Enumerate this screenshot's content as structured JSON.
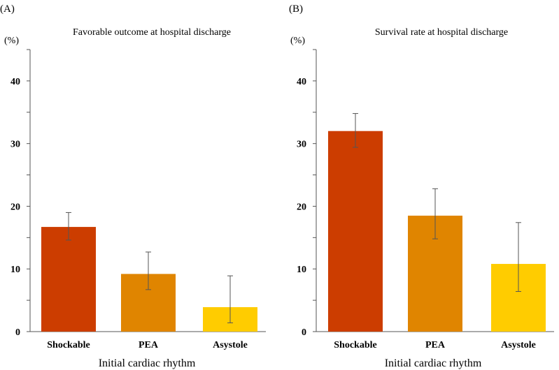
{
  "chart_data": [
    {
      "type": "bar",
      "panel": "(A)",
      "title": "Favorable outcome at hospital discharge",
      "ylabel": "(%)",
      "xlabel": "Initial cardiac rhythm",
      "ylim": [
        0,
        45
      ],
      "yticks": [
        0,
        10,
        20,
        30,
        40
      ],
      "categories": [
        "Shockable",
        "PEA",
        "Asystole"
      ],
      "values": [
        16.7,
        9.2,
        3.9
      ],
      "error_low": [
        14.6,
        6.7,
        1.4
      ],
      "error_high": [
        19.0,
        12.7,
        8.9
      ],
      "colors": [
        "#cc3d00",
        "#e08500",
        "#ffcc00"
      ]
    },
    {
      "type": "bar",
      "panel": "(B)",
      "title": "Survival rate at hospital discharge",
      "ylabel": "(%)",
      "xlabel": "Initial cardiac rhythm",
      "ylim": [
        0,
        45
      ],
      "yticks": [
        0,
        10,
        20,
        30,
        40
      ],
      "categories": [
        "Shockable",
        "PEA",
        "Asystole"
      ],
      "values": [
        32.0,
        18.5,
        10.8
      ],
      "error_low": [
        29.4,
        14.8,
        6.4
      ],
      "error_high": [
        34.8,
        22.8,
        17.4
      ],
      "colors": [
        "#cc3d00",
        "#e08500",
        "#ffcc00"
      ]
    }
  ]
}
